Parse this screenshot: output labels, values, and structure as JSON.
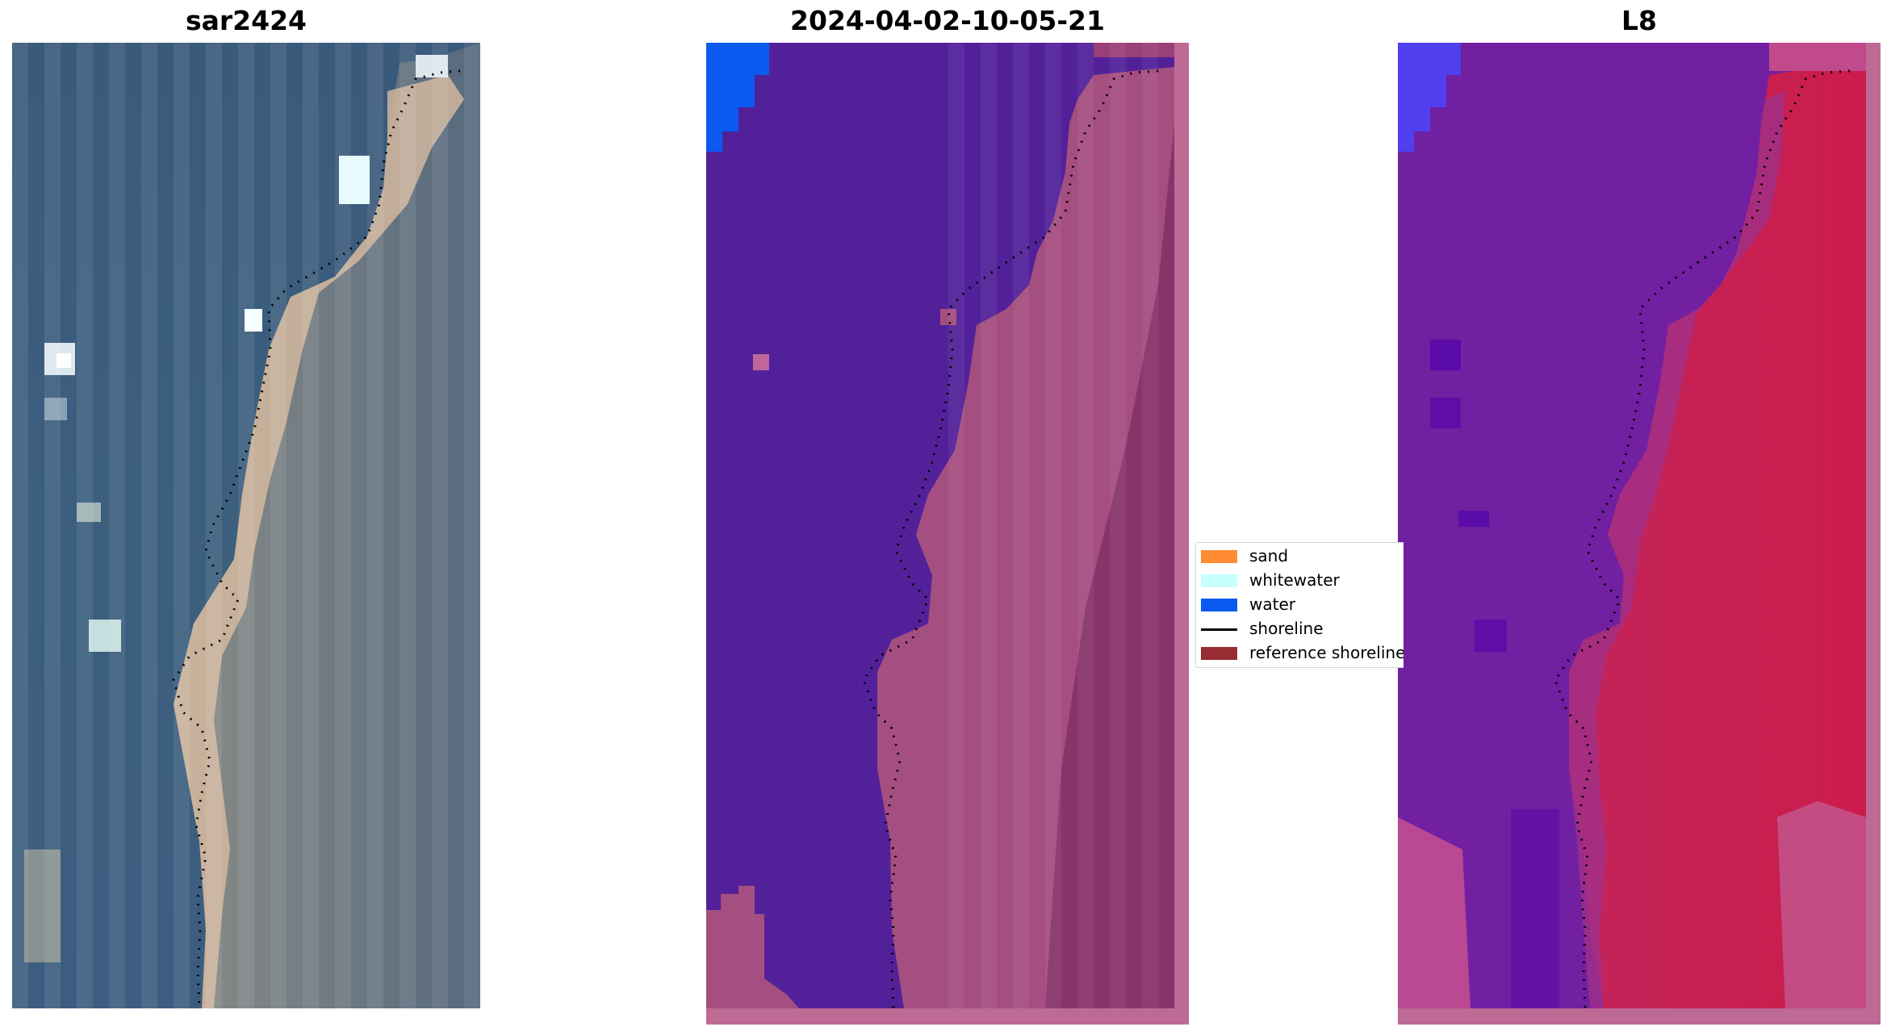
{
  "panels": [
    {
      "title": "sar2424"
    },
    {
      "title": "2024-04-02-10-05-21"
    },
    {
      "title": "L8"
    }
  ],
  "legend": {
    "items": [
      {
        "label": "sand",
        "kind": "patch",
        "color": "#ff8c33"
      },
      {
        "label": "whitewater",
        "kind": "patch",
        "color": "#c8ffff"
      },
      {
        "label": "water",
        "kind": "patch",
        "color": "#0a5af0"
      },
      {
        "label": "shoreline",
        "kind": "line",
        "color": "#000000"
      },
      {
        "label": "reference shoreline",
        "kind": "patch",
        "color": "#962d32"
      }
    ]
  }
}
